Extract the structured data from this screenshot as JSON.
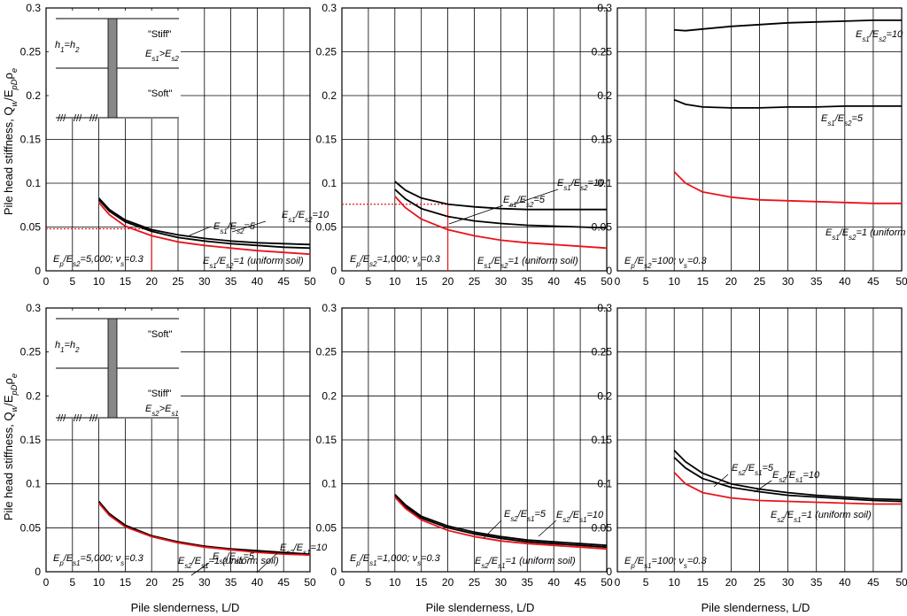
{
  "figure": {
    "y_axis_label": "Pile head stiffness, Q_w/E_pDρ_e",
    "x_axis_label": "Pile slenderness, L/D",
    "x_ticks": [
      "0",
      "5",
      "10",
      "15",
      "20",
      "25",
      "30",
      "35",
      "40",
      "45",
      "50"
    ],
    "y_ticks": [
      "0",
      "0.05",
      "0.1",
      "0.15",
      "0.2",
      "0.25",
      "0.3"
    ]
  },
  "colors": {
    "uniform_soil": "#e8141b",
    "layered": "#000000",
    "grid": "#000000"
  },
  "chart_data": [
    {
      "type": "line",
      "position": "top-left",
      "xlim": [
        0,
        50
      ],
      "ylim": [
        0,
        0.3
      ],
      "annotation": "E_p/E_s2=5,000; ν_s=0.3",
      "inset": {
        "h": "h_1=h_2",
        "upper": "\"Stiff\"",
        "lower": "\"Soft\"",
        "relation": "E_s1>E_s2"
      },
      "series": [
        {
          "name": "E_s1/E_s2=10",
          "color": "#000000",
          "x": [
            10,
            12,
            15,
            20,
            25,
            30,
            35,
            40,
            45,
            50
          ],
          "y": [
            0.083,
            0.07,
            0.058,
            0.047,
            0.041,
            0.037,
            0.034,
            0.032,
            0.031,
            0.03
          ]
        },
        {
          "name": "E_s1/E_s2=5",
          "color": "#000000",
          "x": [
            10,
            12,
            15,
            20,
            25,
            30,
            35,
            40,
            45,
            50
          ],
          "y": [
            0.081,
            0.068,
            0.056,
            0.045,
            0.038,
            0.034,
            0.031,
            0.029,
            0.027,
            0.026
          ]
        },
        {
          "name": "E_s1/E_s2=1 (uniform soil)",
          "color": "#e8141b",
          "x": [
            10,
            12,
            15,
            20,
            25,
            30,
            35,
            40,
            45,
            50
          ],
          "y": [
            0.078,
            0.064,
            0.051,
            0.04,
            0.033,
            0.029,
            0.026,
            0.023,
            0.021,
            0.019
          ]
        }
      ],
      "reference": {
        "x": 20,
        "y": 0.048
      }
    },
    {
      "type": "line",
      "position": "top-middle",
      "xlim": [
        0,
        50
      ],
      "ylim": [
        0,
        0.3
      ],
      "annotation": "E_p/E_s2=1,000; ν_s=0.3",
      "series": [
        {
          "name": "E_s1/E_s2=10",
          "color": "#000000",
          "x": [
            10,
            12,
            15,
            20,
            25,
            30,
            35,
            40,
            45,
            50
          ],
          "y": [
            0.102,
            0.092,
            0.083,
            0.076,
            0.073,
            0.071,
            0.07,
            0.07,
            0.07,
            0.07
          ]
        },
        {
          "name": "E_s1/E_s2=5",
          "color": "#000000",
          "x": [
            10,
            12,
            15,
            20,
            25,
            30,
            35,
            40,
            45,
            50
          ],
          "y": [
            0.093,
            0.082,
            0.071,
            0.062,
            0.057,
            0.054,
            0.052,
            0.051,
            0.05,
            0.049
          ]
        },
        {
          "name": "E_s1/E_s2=1 (uniform soil)",
          "color": "#e8141b",
          "x": [
            10,
            12,
            15,
            20,
            25,
            30,
            35,
            40,
            45,
            50
          ],
          "y": [
            0.085,
            0.072,
            0.059,
            0.047,
            0.04,
            0.035,
            0.032,
            0.03,
            0.028,
            0.026
          ]
        }
      ],
      "reference": {
        "x": 20,
        "y": 0.076
      }
    },
    {
      "type": "line",
      "position": "top-right",
      "xlim": [
        0,
        50
      ],
      "ylim": [
        0,
        0.3
      ],
      "annotation": "E_p/E_s2=100; ν_s=0.3",
      "series": [
        {
          "name": "E_s1/E_s2=10",
          "color": "#000000",
          "x": [
            10,
            12,
            15,
            20,
            25,
            30,
            35,
            40,
            45,
            50
          ],
          "y": [
            0.275,
            0.274,
            0.276,
            0.279,
            0.281,
            0.283,
            0.284,
            0.285,
            0.286,
            0.286
          ]
        },
        {
          "name": "E_s1/E_s2=5",
          "color": "#000000",
          "x": [
            10,
            12,
            15,
            20,
            25,
            30,
            35,
            40,
            45,
            50
          ],
          "y": [
            0.195,
            0.19,
            0.187,
            0.186,
            0.186,
            0.187,
            0.187,
            0.188,
            0.188,
            0.188
          ]
        },
        {
          "name": "E_s1/E_s2=1 (uniform soil)",
          "color": "#e8141b",
          "x": [
            10,
            12,
            15,
            20,
            25,
            30,
            35,
            40,
            45,
            50
          ],
          "y": [
            0.113,
            0.1,
            0.09,
            0.084,
            0.081,
            0.08,
            0.079,
            0.078,
            0.077,
            0.077
          ]
        }
      ]
    },
    {
      "type": "line",
      "position": "bottom-left",
      "xlim": [
        0,
        50
      ],
      "ylim": [
        0,
        0.3
      ],
      "annotation": "E_p/E_s1=5,000; ν_s=0.3",
      "inset": {
        "h": "h_1=h_2",
        "upper": "\"Soft\"",
        "lower": "\"Stiff\"",
        "relation": "E_s2>E_s1"
      },
      "series": [
        {
          "name": "E_s2/E_s1=10",
          "color": "#000000",
          "x": [
            10,
            12,
            15,
            20,
            25,
            30,
            35,
            40,
            45,
            50
          ],
          "y": [
            0.08,
            0.066,
            0.053,
            0.041,
            0.034,
            0.029,
            0.026,
            0.024,
            0.022,
            0.02
          ]
        },
        {
          "name": "E_s2/E_s1=5",
          "color": "#000000",
          "x": [
            10,
            12,
            15,
            20,
            25,
            30,
            35,
            40,
            45,
            50
          ],
          "y": [
            0.079,
            0.065,
            0.052,
            0.04,
            0.033,
            0.029,
            0.025,
            0.023,
            0.021,
            0.019
          ]
        },
        {
          "name": "E_s2/E_s1=1 (uniform soil)",
          "color": "#e8141b",
          "x": [
            10,
            12,
            15,
            20,
            25,
            30,
            35,
            40,
            45,
            50
          ],
          "y": [
            0.078,
            0.064,
            0.051,
            0.04,
            0.033,
            0.028,
            0.025,
            0.022,
            0.02,
            0.019
          ]
        }
      ]
    },
    {
      "type": "line",
      "position": "bottom-middle",
      "xlim": [
        0,
        50
      ],
      "ylim": [
        0,
        0.3
      ],
      "annotation": "E_p/E_s1=1,000; ν_s=0.3",
      "series": [
        {
          "name": "E_s2/E_s1=10",
          "color": "#000000",
          "x": [
            10,
            12,
            15,
            20,
            25,
            30,
            35,
            40,
            45,
            50
          ],
          "y": [
            0.088,
            0.076,
            0.063,
            0.052,
            0.045,
            0.04,
            0.036,
            0.034,
            0.032,
            0.03
          ]
        },
        {
          "name": "E_s2/E_s1=5",
          "color": "#000000",
          "x": [
            10,
            12,
            15,
            20,
            25,
            30,
            35,
            40,
            45,
            50
          ],
          "y": [
            0.087,
            0.074,
            0.061,
            0.05,
            0.043,
            0.038,
            0.034,
            0.032,
            0.03,
            0.028
          ]
        },
        {
          "name": "E_s2/E_s1=1 (uniform soil)",
          "color": "#e8141b",
          "x": [
            10,
            12,
            15,
            20,
            25,
            30,
            35,
            40,
            45,
            50
          ],
          "y": [
            0.085,
            0.072,
            0.059,
            0.047,
            0.04,
            0.035,
            0.032,
            0.03,
            0.028,
            0.026
          ]
        }
      ]
    },
    {
      "type": "line",
      "position": "bottom-right",
      "xlim": [
        0,
        50
      ],
      "ylim": [
        0,
        0.3
      ],
      "annotation": "E_p/E_s1=100; ν_s=0.3",
      "series": [
        {
          "name": "E_s2/E_s1=10",
          "color": "#000000",
          "x": [
            10,
            12,
            15,
            20,
            25,
            30,
            35,
            40,
            45,
            50
          ],
          "y": [
            0.138,
            0.125,
            0.112,
            0.1,
            0.094,
            0.09,
            0.087,
            0.085,
            0.083,
            0.082
          ]
        },
        {
          "name": "E_s2/E_s1=5",
          "color": "#000000",
          "x": [
            10,
            12,
            15,
            20,
            25,
            30,
            35,
            40,
            45,
            50
          ],
          "y": [
            0.13,
            0.118,
            0.106,
            0.096,
            0.091,
            0.087,
            0.085,
            0.083,
            0.081,
            0.08
          ]
        },
        {
          "name": "E_s2/E_s1=1 (uniform soil)",
          "color": "#e8141b",
          "x": [
            10,
            12,
            15,
            20,
            25,
            30,
            35,
            40,
            45,
            50
          ],
          "y": [
            0.113,
            0.1,
            0.09,
            0.084,
            0.081,
            0.08,
            0.079,
            0.078,
            0.077,
            0.077
          ]
        }
      ]
    }
  ]
}
